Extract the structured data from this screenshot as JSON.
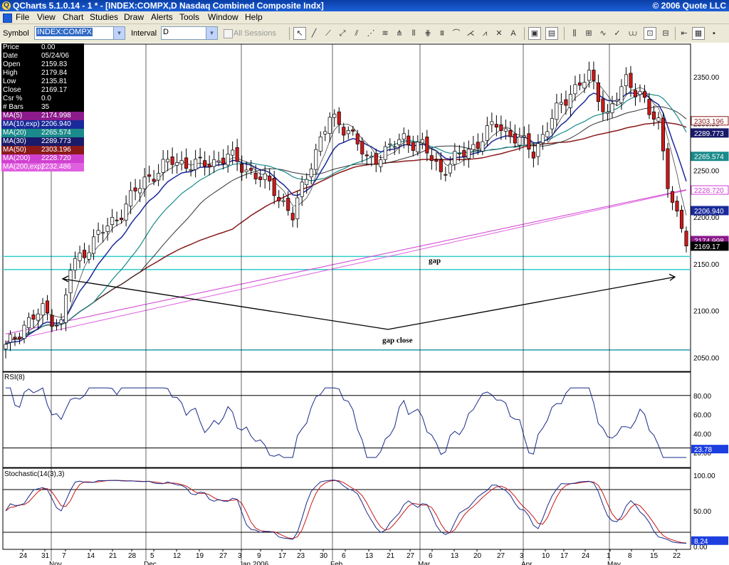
{
  "window": {
    "title": "QCharts 5.1.0.14 - 1 * - [INDEX:COMPX,D Nasdaq Combined Composite Indx]",
    "copyright": "© 2006 Quote LLC"
  },
  "menu": [
    "File",
    "View",
    "Chart",
    "Studies",
    "Draw",
    "Alerts",
    "Tools",
    "Window",
    "Help"
  ],
  "toolbar": {
    "symbol_label": "Symbol",
    "symbol_value": "INDEX:COMPX",
    "interval_label": "Interval",
    "interval_value": "D",
    "all_sessions_label": "All Sessions"
  },
  "info_panel": [
    {
      "label": "Price",
      "value": "0.00",
      "color": "#ffffff"
    },
    {
      "label": "Date",
      "value": "05/24/06",
      "color": "#ffffff"
    },
    {
      "label": "Open",
      "value": "2159.83",
      "color": "#ffffff"
    },
    {
      "label": "High",
      "value": "2179.84",
      "color": "#ffffff"
    },
    {
      "label": "Low",
      "value": "2135.81",
      "color": "#ffffff"
    },
    {
      "label": "Close",
      "value": "2169.17",
      "color": "#ffffff"
    },
    {
      "label": "Csr %",
      "value": "0.0",
      "color": "#ffffff"
    },
    {
      "label": "# Bars",
      "value": "35",
      "color": "#ffffff"
    },
    {
      "label": "MA(5)",
      "value": "2174.998",
      "color": "#8b1a8b"
    },
    {
      "label": "MA(10,exp)",
      "value": "2206.940",
      "color": "#1a2a9a"
    },
    {
      "label": "MA(20)",
      "value": "2265.574",
      "color": "#1a8a8a"
    },
    {
      "label": "MA(30)",
      "value": "2289.773",
      "color": "#1a1a6a"
    },
    {
      "label": "MA(50)",
      "value": "2303.196",
      "color": "#8a1a1a"
    },
    {
      "label": "MA(200)",
      "value": "2228.720",
      "color": "#d040d0"
    },
    {
      "label": "MA(200,exp)",
      "value": "2232.486",
      "color": "#e060e0"
    }
  ],
  "chart_data": {
    "type": "candlestick",
    "price_axis": {
      "ticks": [
        "2350.00",
        "2300.00",
        "2250.00",
        "2200.00",
        "2150.00",
        "2100.00",
        "2050.00"
      ],
      "range": [
        2035,
        2385
      ]
    },
    "badges": [
      {
        "value": "2303.196",
        "color": "#8a1a1a"
      },
      {
        "value": "2289.773",
        "color": "#1a1a6a"
      },
      {
        "value": "2265.574",
        "color": "#1a8a8a"
      },
      {
        "value": "2228.720",
        "color": "#d040d0"
      },
      {
        "value": "2206.940",
        "color": "#1a2a9a"
      },
      {
        "value": "2174.998",
        "color": "#8b1a8b"
      },
      {
        "value": "2169.17",
        "color": "#000000"
      }
    ],
    "horizontal_lines": [
      {
        "price": 2158,
        "color": "#33cccc"
      },
      {
        "price": 2144,
        "color": "#33cccc"
      },
      {
        "price": 2058,
        "color": "#2a9aaa"
      }
    ],
    "annotations": {
      "gap": "gap",
      "gap_close": "gap close"
    },
    "rsi": {
      "label": "RSI(8)",
      "ticks": [
        "80.00",
        "60.00",
        "40.00",
        "20.00"
      ],
      "current": "23.78"
    },
    "stochastic": {
      "label": "Stochastic(14(3),3)",
      "ticks": [
        "100.00",
        "50.00",
        "0.00"
      ],
      "current": "8.24"
    },
    "x_axis": {
      "day_ticks": [
        "24",
        "31",
        "7",
        "14",
        "21",
        "28",
        "5",
        "12",
        "19",
        "27",
        "3",
        "9",
        "17",
        "23",
        "30",
        "6",
        "13",
        "21",
        "27",
        "6",
        "13",
        "20",
        "27",
        "3",
        "10",
        "17",
        "24",
        "1",
        "8",
        "15",
        "22"
      ],
      "month_labels": [
        "Nov",
        "Dec",
        "Jan 2006",
        "Feb",
        "Mar",
        "Apr",
        "May"
      ]
    }
  }
}
